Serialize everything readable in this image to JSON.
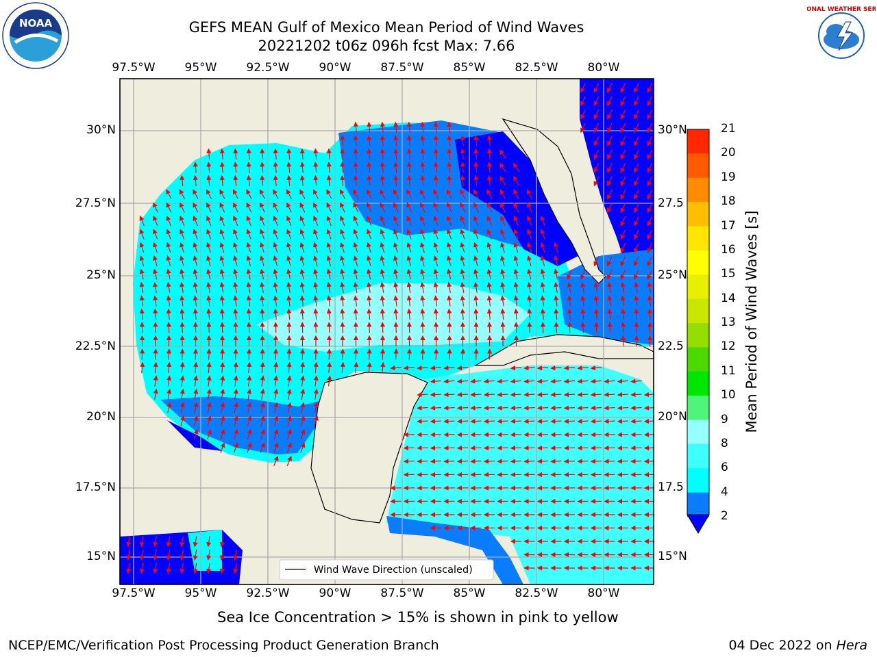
{
  "title": {
    "line1": "GEFS MEAN Gulf of Mexico Mean Period of Wind Waves",
    "line2": "20221202 t06z 096h fcst   Max: 7.66"
  },
  "map": {
    "lon_labels": [
      "97.5°W",
      "95°W",
      "92.5°W",
      "90°W",
      "87.5°W",
      "85°W",
      "82.5°W",
      "80°W"
    ],
    "lat_labels_left": [
      "30°N",
      "27.5°N",
      "25°N",
      "22.5°N",
      "20°N",
      "17.5°N",
      "15°N"
    ],
    "lat_labels_right": [
      "30°N",
      "27.5",
      "25°N",
      "22.5",
      "20°N",
      "17.5",
      "15°N"
    ],
    "legend_label": "Wind Wave Direction (unscaled)",
    "land_color": "#efedde",
    "arrow_color": "#ff0000"
  },
  "colorbar": {
    "label": "Mean Period of Wind Waves [s]",
    "ticks": [
      "2",
      "4",
      "6",
      "8",
      "9",
      "10",
      "11",
      "12",
      "13",
      "14",
      "15",
      "16",
      "17",
      "18",
      "19",
      "20",
      "21"
    ],
    "colors": [
      "#0a7dff",
      "#00ffff",
      "#40ffff",
      "#96ffff",
      "#4ff57a",
      "#00e600",
      "#4cd900",
      "#96de00",
      "#c8e600",
      "#e6f000",
      "#ffff00",
      "#ffe600",
      "#ffbf00",
      "#ff8c00",
      "#ff5a00",
      "#ff2800",
      "#ff0000"
    ],
    "under_color": "#0000ff"
  },
  "caption": "Sea Ice Concentration > 15% is shown in pink to yellow",
  "footer": {
    "left": "NCEP/EMC/Verification Post Processing Product Generation Branch",
    "right_date": "04 Dec 2022 on ",
    "right_host": "Hera"
  },
  "logos": {
    "noaa_text": "NOAA",
    "nws_text": "NATIONAL WEATHER SERVICE"
  }
}
